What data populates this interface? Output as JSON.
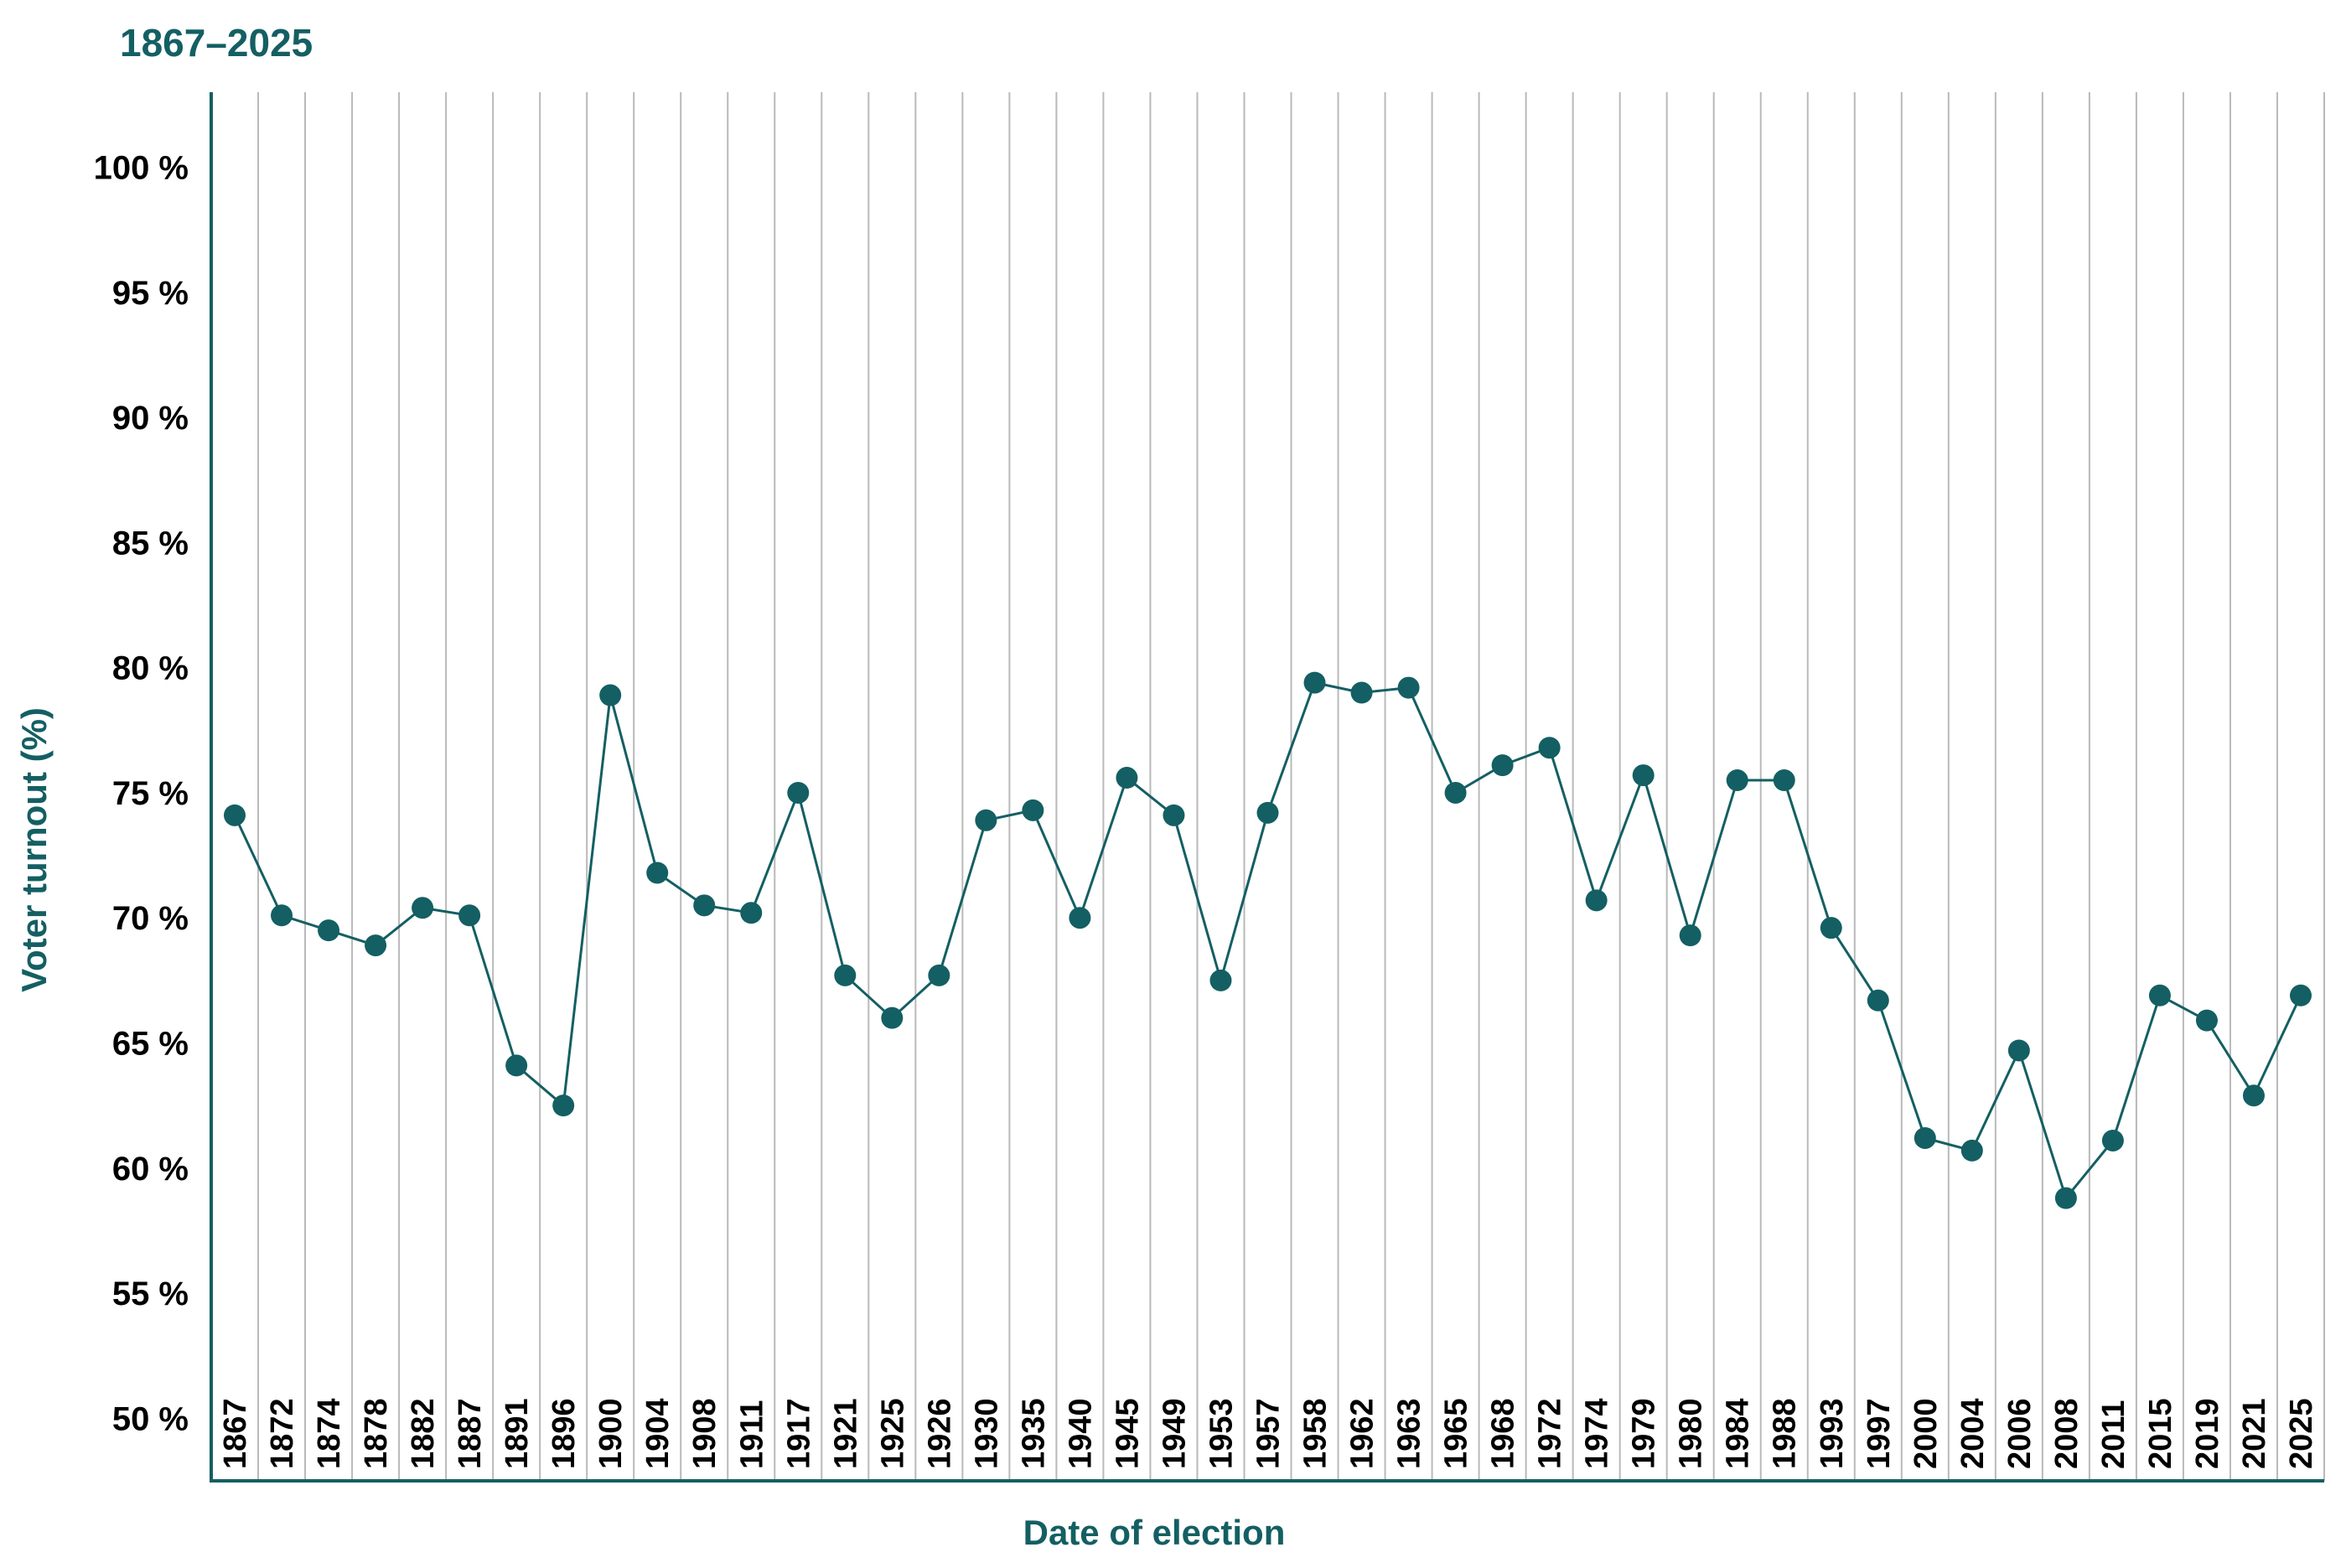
{
  "colors": {
    "accent": "#145f63",
    "grid": "#b9b9b9",
    "text": "#000000"
  },
  "chart_data": {
    "type": "line",
    "title": "1867–2025",
    "xlabel": "Date of election",
    "ylabel": "Voter turnout (%)",
    "ylim": [
      47.5,
      103.0
    ],
    "yticks": [
      50,
      55,
      60,
      65,
      70,
      75,
      80,
      85,
      90,
      95,
      100
    ],
    "ytick_suffix": " %",
    "grid": "vertical",
    "categories": [
      "1867",
      "1872",
      "1874",
      "1878",
      "1882",
      "1887",
      "1891",
      "1896",
      "1900",
      "1904",
      "1908",
      "1911",
      "1917",
      "1921",
      "1925",
      "1926",
      "1930",
      "1935",
      "1940",
      "1945",
      "1949",
      "1953",
      "1957",
      "1958",
      "1962",
      "1963",
      "1965",
      "1968",
      "1972",
      "1974",
      "1979",
      "1980",
      "1984",
      "1988",
      "1993",
      "1997",
      "2000",
      "2004",
      "2006",
      "2008",
      "2011",
      "2015",
      "2019",
      "2021",
      "2025"
    ],
    "series": [
      {
        "values": [
          74.1,
          70.1,
          69.5,
          68.9,
          70.4,
          70.1,
          64.1,
          62.5,
          78.9,
          71.8,
          70.5,
          70.2,
          75.0,
          67.7,
          66.0,
          67.7,
          73.9,
          74.3,
          70.0,
          75.6,
          74.1,
          67.5,
          74.2,
          79.4,
          79.0,
          79.2,
          75.0,
          76.1,
          76.8,
          70.7,
          75.7,
          69.3,
          75.5,
          75.5,
          69.6,
          66.7,
          61.2,
          60.7,
          64.7,
          58.8,
          61.1,
          66.9,
          65.9,
          62.9,
          66.9
        ]
      }
    ]
  }
}
